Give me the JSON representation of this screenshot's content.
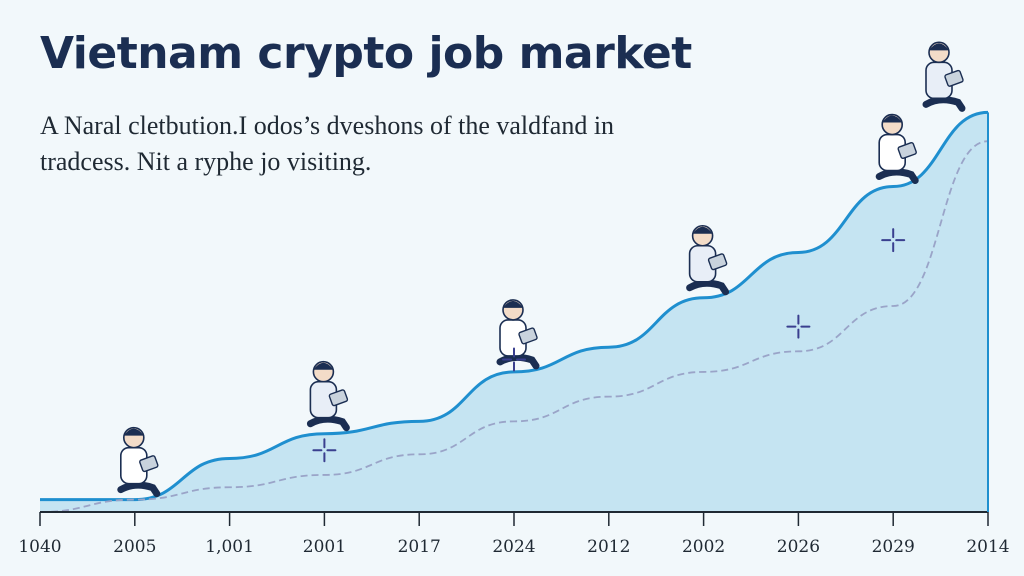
{
  "header": {
    "title": "Vietnam crypto job market",
    "subtitle_lines": [
      "A Naral cletbution.I odos’s dveshons of the valdfand in",
      "tradcess. Nit a ryphe jo visiting."
    ]
  },
  "colors": {
    "title": "#1b2e52",
    "area_fill": "#c5e4f2",
    "area_stroke": "#1f8fcf",
    "trend_line": "#9aa4c8",
    "marker": "#3a3f8f",
    "axis": "#1f2933"
  },
  "icons": [
    "worker-figure-icon",
    "sparkle-marker-icon"
  ],
  "chart_data": {
    "type": "area",
    "title": "Vietnam crypto job market",
    "xlabel": "",
    "ylabel": "",
    "grid": false,
    "legend": "none",
    "ylim": [
      0,
      100
    ],
    "categories": [
      "1040",
      "2005",
      "1,001",
      "2001",
      "2017",
      "2024",
      "2012",
      "2002",
      "2026",
      "2029",
      "2014"
    ],
    "series": [
      {
        "values": [
          3,
          3,
          13,
          19,
          22,
          34,
          40,
          52,
          63,
          79,
          97
        ]
      },
      {
        "values": [
          0,
          3,
          6,
          9,
          14,
          22,
          28,
          34,
          39,
          50,
          90
        ]
      }
    ],
    "markers": [
      {
        "category": "2001",
        "value": 15
      },
      {
        "category": "2024",
        "value": 37
      },
      {
        "category": "2026",
        "value": 45
      },
      {
        "category": "2029",
        "value": 66
      }
    ]
  }
}
